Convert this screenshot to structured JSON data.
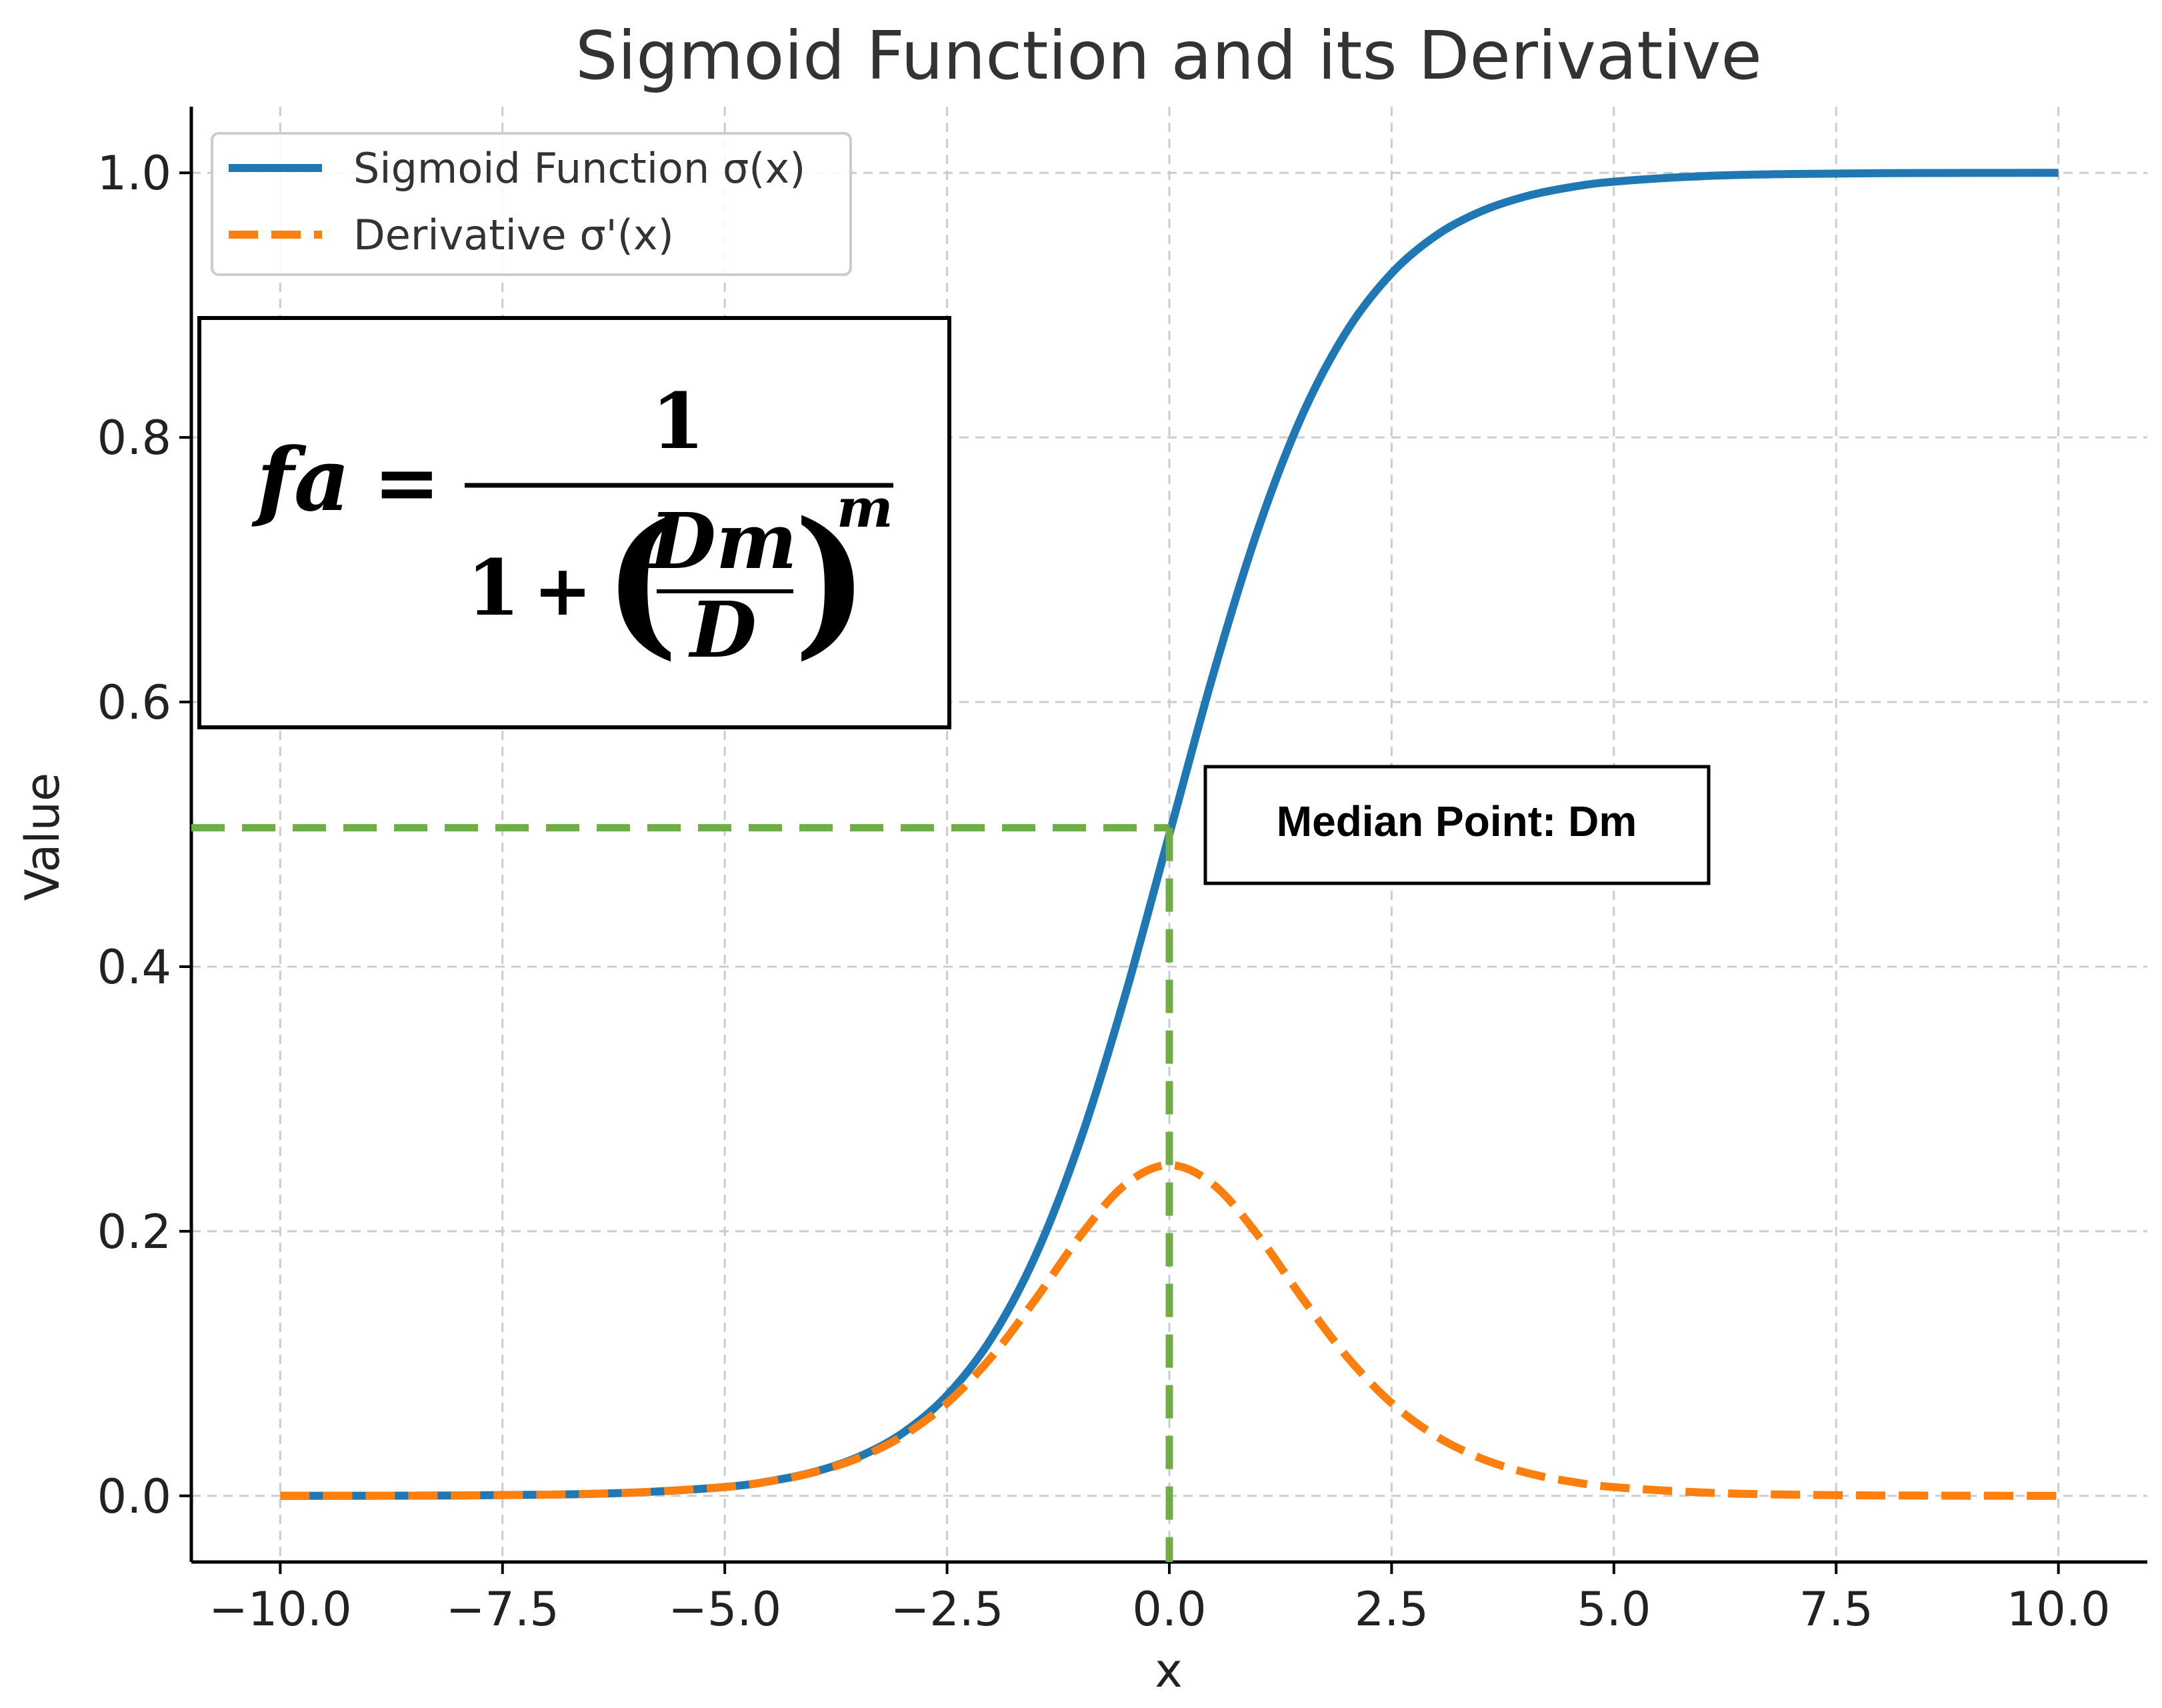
{
  "chart_data": {
    "type": "line",
    "title": "Sigmoid Function and its Derivative",
    "xlabel": "x",
    "ylabel": "Value",
    "xlim": [
      -11.0,
      11.0
    ],
    "ylim": [
      -0.05,
      1.05
    ],
    "xticks": [
      -10.0,
      -7.5,
      -5.0,
      -2.5,
      0.0,
      2.5,
      5.0,
      7.5,
      10.0
    ],
    "xtick_labels": [
      "−10.0",
      "−7.5",
      "−5.0",
      "−2.5",
      "0.0",
      "2.5",
      "5.0",
      "7.5",
      "10.0"
    ],
    "yticks": [
      0.0,
      0.2,
      0.4,
      0.6,
      0.8,
      1.0
    ],
    "ytick_labels": [
      "0.0",
      "0.2",
      "0.4",
      "0.6",
      "0.8",
      "1.0"
    ],
    "grid": true,
    "legend_position": "top-left",
    "x": [
      -10.0,
      -9.0,
      -8.0,
      -7.0,
      -6.0,
      -5.0,
      -4.5,
      -4.0,
      -3.5,
      -3.0,
      -2.5,
      -2.0,
      -1.5,
      -1.0,
      -0.5,
      0.0,
      0.5,
      1.0,
      1.5,
      2.0,
      2.5,
      3.0,
      3.5,
      4.0,
      4.5,
      5.0,
      6.0,
      7.0,
      8.0,
      9.0,
      10.0
    ],
    "series": [
      {
        "name": "Sigmoid Function σ(x)",
        "color": "#1f77b4",
        "line_style": "solid",
        "values": [
          0.0,
          0.0001,
          0.0003,
          0.0009,
          0.0025,
          0.0067,
          0.011,
          0.018,
          0.0293,
          0.0474,
          0.0759,
          0.1192,
          0.1824,
          0.2689,
          0.3775,
          0.5,
          0.6225,
          0.7311,
          0.8176,
          0.8808,
          0.9241,
          0.9526,
          0.9707,
          0.982,
          0.989,
          0.9933,
          0.9975,
          0.9991,
          0.9997,
          0.9999,
          1.0
        ]
      },
      {
        "name": "Derivative σ'(x)",
        "color": "#ff7f0e",
        "line_style": "dashed",
        "values": [
          0.0,
          0.0001,
          0.0003,
          0.0009,
          0.0025,
          0.0066,
          0.0109,
          0.0177,
          0.0285,
          0.0452,
          0.0701,
          0.105,
          0.1491,
          0.1966,
          0.235,
          0.25,
          0.235,
          0.1966,
          0.1491,
          0.105,
          0.0701,
          0.0452,
          0.0285,
          0.0177,
          0.0109,
          0.0066,
          0.0025,
          0.0009,
          0.0003,
          0.0001,
          0.0
        ]
      }
    ],
    "reference_lines": {
      "color": "#70ad47",
      "x": 0.0,
      "y": 0.505
    },
    "annotations": {
      "median_label": "Median Point: Dm",
      "formula": {
        "lhs": "fa",
        "equals": "=",
        "numerator": "1",
        "denominator_one": "1",
        "plus": "+",
        "open_paren": "(",
        "close_paren": ")",
        "inner_numerator": "Dm",
        "inner_denominator": "D",
        "exponent": "m"
      }
    }
  }
}
